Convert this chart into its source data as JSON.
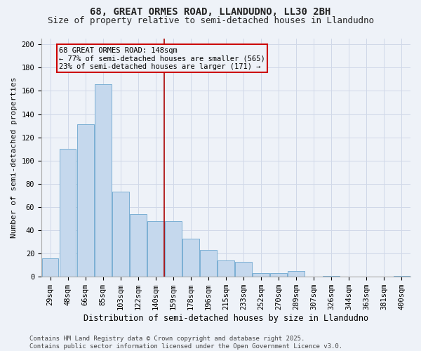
{
  "title1": "68, GREAT ORMES ROAD, LLANDUDNO, LL30 2BH",
  "title2": "Size of property relative to semi-detached houses in Llandudno",
  "xlabel": "Distribution of semi-detached houses by size in Llandudno",
  "ylabel": "Number of semi-detached properties",
  "bar_color": "#c5d8ed",
  "bar_edge_color": "#7bafd4",
  "annotation_box_color": "#cc0000",
  "vline_color": "#aa0000",
  "bg_color": "#eef2f8",
  "grid_color": "#d0d8e8",
  "categories": [
    "29sqm",
    "48sqm",
    "66sqm",
    "85sqm",
    "103sqm",
    "122sqm",
    "140sqm",
    "159sqm",
    "178sqm",
    "196sqm",
    "215sqm",
    "233sqm",
    "252sqm",
    "270sqm",
    "289sqm",
    "307sqm",
    "326sqm",
    "344sqm",
    "363sqm",
    "381sqm",
    "400sqm"
  ],
  "values": [
    16,
    110,
    131,
    166,
    73,
    54,
    48,
    48,
    33,
    23,
    14,
    13,
    3,
    3,
    5,
    0,
    1,
    0,
    0,
    0,
    1
  ],
  "vline_x": 6.5,
  "annotation_line1": "68 GREAT ORMES ROAD: 148sqm",
  "annotation_line2": "← 77% of semi-detached houses are smaller (565)",
  "annotation_line3": "23% of semi-detached houses are larger (171) →",
  "footer": "Contains HM Land Registry data © Crown copyright and database right 2025.\nContains public sector information licensed under the Open Government Licence v3.0.",
  "ylim": [
    0,
    205
  ],
  "yticks": [
    0,
    20,
    40,
    60,
    80,
    100,
    120,
    140,
    160,
    180,
    200
  ],
  "title_fontsize": 10,
  "subtitle_fontsize": 9,
  "tick_fontsize": 7.5,
  "ylabel_fontsize": 8,
  "xlabel_fontsize": 8.5,
  "annotation_fontsize": 7.5,
  "footer_fontsize": 6.5
}
